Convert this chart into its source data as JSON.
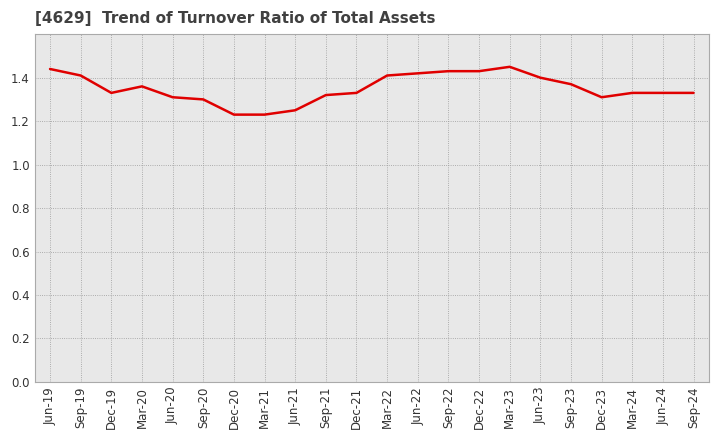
{
  "title": "[4629]  Trend of Turnover Ratio of Total Assets",
  "x_labels": [
    "Jun-19",
    "Sep-19",
    "Dec-19",
    "Mar-20",
    "Jun-20",
    "Sep-20",
    "Dec-20",
    "Mar-21",
    "Jun-21",
    "Sep-21",
    "Dec-21",
    "Mar-22",
    "Jun-22",
    "Sep-22",
    "Dec-22",
    "Mar-23",
    "Jun-23",
    "Sep-23",
    "Dec-23",
    "Mar-24",
    "Jun-24",
    "Sep-24"
  ],
  "values": [
    1.44,
    1.41,
    1.33,
    1.36,
    1.31,
    1.3,
    1.23,
    1.23,
    1.25,
    1.32,
    1.33,
    1.41,
    1.42,
    1.43,
    1.43,
    1.45,
    1.4,
    1.37,
    1.31,
    1.33,
    1.33,
    1.33
  ],
  "line_color": "#e00000",
  "line_width": 1.8,
  "ylim": [
    0.0,
    1.6
  ],
  "yticks": [
    0.0,
    0.2,
    0.4,
    0.6,
    0.8,
    1.0,
    1.2,
    1.4
  ],
  "background_color": "#ffffff",
  "plot_bg_color": "#e8e8e8",
  "grid_color": "#999999",
  "title_fontsize": 11,
  "tick_fontsize": 8.5,
  "title_color": "#404040"
}
